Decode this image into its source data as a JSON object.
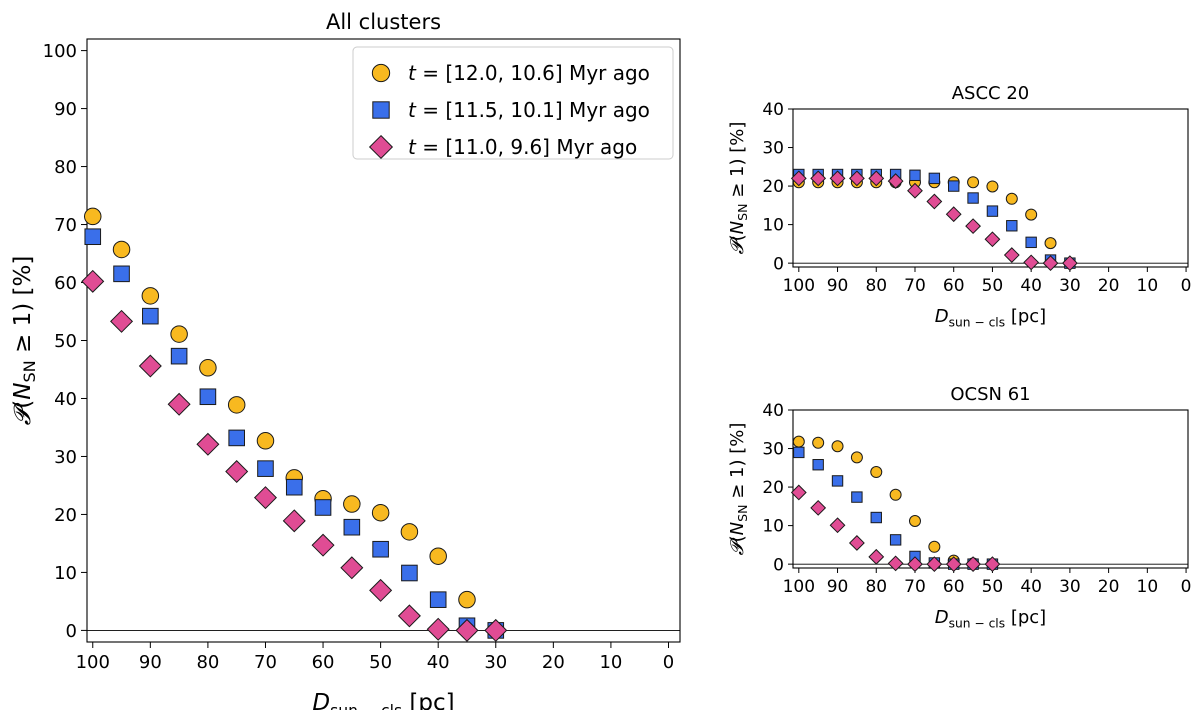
{
  "chart_data": [
    {
      "id": "all",
      "type": "scatter",
      "title": "All clusters",
      "xlabel_main": "D",
      "xlabel_sub": "sun − cls",
      "xlabel_unit": "[pc]",
      "ylabel": "𝓟(N_SN ≥ 1) [%]",
      "xlim": [
        101,
        -2
      ],
      "ylim": [
        -2,
        102
      ],
      "xticks": [
        100,
        90,
        80,
        70,
        60,
        50,
        40,
        30,
        20,
        10,
        0
      ],
      "yticks": [
        0,
        10,
        20,
        30,
        40,
        50,
        60,
        70,
        80,
        90,
        100
      ],
      "hline": 0,
      "legend": "top-right",
      "x": [
        100,
        95,
        90,
        85,
        80,
        75,
        70,
        65,
        60,
        55,
        50,
        45,
        40,
        35,
        30
      ],
      "series": [
        {
          "name": "t = [12.0, 10.6] Myr ago",
          "marker": "circle",
          "color": "#f8b920",
          "values": [
            71.4,
            65.7,
            57.7,
            51.1,
            45.3,
            38.9,
            32.7,
            26.3,
            22.7,
            21.8,
            20.3,
            17.0,
            12.8,
            5.3,
            0.0
          ]
        },
        {
          "name": "t = [11.5, 10.1] Myr ago",
          "marker": "square",
          "color": "#3a6fea",
          "values": [
            67.9,
            61.5,
            54.2,
            47.3,
            40.3,
            33.2,
            27.9,
            24.7,
            21.2,
            17.8,
            14.0,
            9.9,
            5.3,
            0.8,
            0.0
          ]
        },
        {
          "name": "t = [11.0, 9.6] Myr ago",
          "marker": "diamond",
          "color": "#e04c94",
          "values": [
            60.2,
            53.3,
            45.6,
            39.0,
            32.1,
            27.4,
            22.9,
            18.9,
            14.7,
            10.8,
            6.9,
            2.5,
            0.2,
            0.0,
            0.0
          ]
        }
      ]
    },
    {
      "id": "ascc",
      "type": "scatter",
      "title": "ASCC 20",
      "xlabel_main": "D",
      "xlabel_sub": "sun − cls",
      "xlabel_unit": "[pc]",
      "ylabel": "𝓟(N_SN ≥ 1) [%]",
      "xlim": [
        101.5,
        -0.5
      ],
      "ylim": [
        -1,
        40
      ],
      "xticks": [
        100,
        90,
        80,
        70,
        60,
        50,
        40,
        30,
        20,
        10,
        0
      ],
      "yticks": [
        0,
        10,
        20,
        30,
        40
      ],
      "hline": 0,
      "x": [
        100,
        95,
        90,
        85,
        80,
        75,
        70,
        65,
        60,
        55,
        50,
        45,
        40,
        35,
        30
      ],
      "series": [
        {
          "name": "t = [12.0, 10.6] Myr ago",
          "marker": "circle",
          "color": "#f8b920",
          "values": [
            21.0,
            21.0,
            21.0,
            21.0,
            21.0,
            21.0,
            21.0,
            21.0,
            21.0,
            21.0,
            19.9,
            16.7,
            12.6,
            5.2,
            0.0
          ]
        },
        {
          "name": "t = [11.5, 10.1] Myr ago",
          "marker": "square",
          "color": "#3a6fea",
          "values": [
            23.0,
            23.0,
            23.0,
            23.0,
            23.0,
            23.0,
            22.8,
            22.0,
            20.0,
            16.9,
            13.5,
            9.7,
            5.4,
            0.8,
            0.0
          ]
        },
        {
          "name": "t = [11.0, 9.6] Myr ago",
          "marker": "diamond",
          "color": "#e04c94",
          "values": [
            22.0,
            22.0,
            22.0,
            22.0,
            22.0,
            21.3,
            18.8,
            16.0,
            12.7,
            9.6,
            6.2,
            2.1,
            0.2,
            0.0,
            0.0
          ]
        }
      ]
    },
    {
      "id": "ocsn",
      "type": "scatter",
      "title": "OCSN 61",
      "xlabel_main": "D",
      "xlabel_sub": "sun − cls",
      "xlabel_unit": "[pc]",
      "ylabel": "𝓟(N_SN ≥ 1) [%]",
      "xlim": [
        101.5,
        -0.5
      ],
      "ylim": [
        -1,
        40
      ],
      "xticks": [
        100,
        90,
        80,
        70,
        60,
        50,
        40,
        30,
        20,
        10,
        0
      ],
      "yticks": [
        0,
        10,
        20,
        30,
        40
      ],
      "hline": 0,
      "x": [
        100,
        95,
        90,
        85,
        80,
        75,
        70,
        65,
        60,
        55,
        50
      ],
      "series": [
        {
          "name": "t = [12.0, 10.6] Myr ago",
          "marker": "circle",
          "color": "#f8b920",
          "values": [
            31.8,
            31.5,
            30.6,
            27.7,
            23.9,
            18.0,
            11.2,
            4.5,
            0.9,
            0.2,
            0.0
          ]
        },
        {
          "name": "t = [11.5, 10.1] Myr ago",
          "marker": "square",
          "color": "#3a6fea",
          "values": [
            29.0,
            25.8,
            21.6,
            17.4,
            12.1,
            6.3,
            2.0,
            0.3,
            0.0,
            0.0,
            0.0
          ]
        },
        {
          "name": "t = [11.0, 9.6] Myr ago",
          "marker": "diamond",
          "color": "#e04c94",
          "values": [
            18.6,
            14.6,
            10.1,
            5.5,
            1.9,
            0.2,
            0.0,
            0.0,
            0.0,
            0.0,
            0.0
          ]
        }
      ]
    }
  ]
}
